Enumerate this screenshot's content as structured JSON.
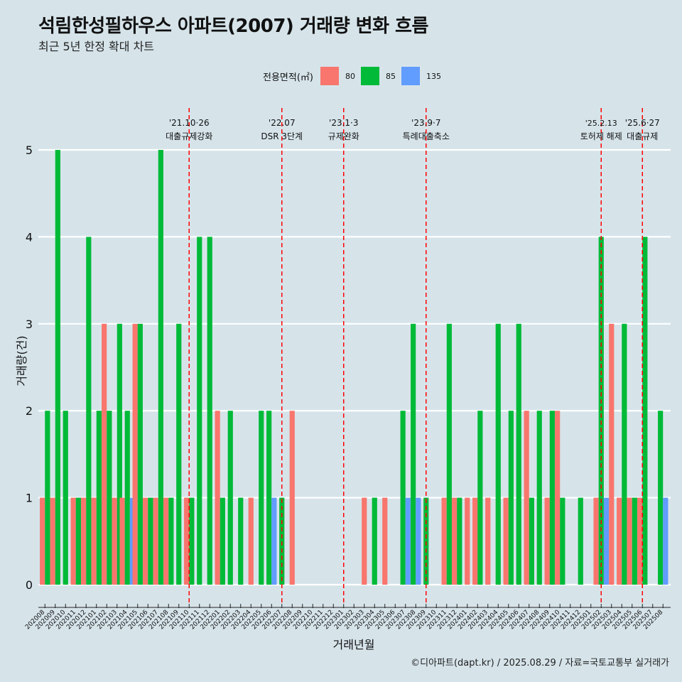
{
  "title": "석림한성필하우스 아파트(2007) 거래량 변화 흐름",
  "subtitle": "최근 5년 한정 확대 차트",
  "caption": "©디아파트(dapt.kr) / 2025.08.29 / 자료=국토교통부 실거래가",
  "legend": {
    "title": "전용면적(㎡)",
    "items": [
      {
        "label": "80",
        "color": "#f8766d"
      },
      {
        "label": "85",
        "color": "#00ba38"
      },
      {
        "label": "135",
        "color": "#619cff"
      }
    ]
  },
  "chart_data": {
    "type": "bar",
    "xlabel": "거래년월",
    "ylabel": "거래량(건)",
    "ylim": [
      0,
      5
    ],
    "yticks": [
      0,
      1,
      2,
      3,
      4,
      5
    ],
    "grid": true,
    "legend_position": "top",
    "categories": [
      "202008",
      "202009",
      "202010",
      "202011",
      "202012",
      "202101",
      "202102",
      "202103",
      "202104",
      "202105",
      "202106",
      "202107",
      "202108",
      "202109",
      "202110",
      "202111",
      "202112",
      "202201",
      "202202",
      "202203",
      "202204",
      "202205",
      "202206",
      "202207",
      "202208",
      "202209",
      "202210",
      "202211",
      "202212",
      "202301",
      "202302",
      "202303",
      "202304",
      "202305",
      "202306",
      "202307",
      "202308",
      "202309",
      "202310",
      "202311",
      "202312",
      "202401",
      "202402",
      "202403",
      "202404",
      "202405",
      "202406",
      "202407",
      "202408",
      "202409",
      "202410",
      "202411",
      "202412",
      "202501",
      "202502",
      "202503",
      "202504",
      "202505",
      "202506",
      "202507",
      "202508"
    ],
    "series": [
      {
        "name": "80",
        "color": "#f8766d",
        "values": [
          1,
          1,
          0,
          1,
          1,
          1,
          3,
          1,
          1,
          3,
          1,
          1,
          1,
          0,
          1,
          0,
          0,
          2,
          0,
          0,
          1,
          0,
          0,
          0,
          2,
          0,
          0,
          0,
          0,
          0,
          0,
          1,
          0,
          1,
          0,
          0,
          0,
          0,
          0,
          1,
          1,
          1,
          1,
          1,
          0,
          1,
          0,
          2,
          0,
          1,
          2,
          0,
          0,
          0,
          1,
          3,
          1,
          1,
          1,
          0,
          0
        ]
      },
      {
        "name": "85",
        "color": "#00ba38",
        "values": [
          2,
          5,
          2,
          1,
          4,
          2,
          2,
          3,
          2,
          3,
          1,
          5,
          1,
          3,
          1,
          4,
          4,
          1,
          2,
          1,
          0,
          2,
          2,
          1,
          0,
          0,
          0,
          0,
          0,
          0,
          0,
          0,
          1,
          0,
          0,
          2,
          3,
          1,
          0,
          3,
          1,
          0,
          2,
          0,
          3,
          2,
          3,
          1,
          2,
          2,
          1,
          0,
          1,
          0,
          4,
          0,
          3,
          1,
          4,
          0,
          2
        ]
      },
      {
        "name": "135",
        "color": "#619cff",
        "values": [
          0,
          0,
          0,
          0,
          0,
          0,
          0,
          0,
          1,
          0,
          0,
          0,
          0,
          0,
          0,
          0,
          0,
          0,
          0,
          0,
          0,
          0,
          1,
          0,
          0,
          0,
          0,
          0,
          0,
          0,
          0,
          0,
          0,
          0,
          0,
          1,
          1,
          0,
          0,
          0,
          0,
          0,
          0,
          0,
          0,
          0,
          0,
          0,
          0,
          0,
          0,
          0,
          0,
          0,
          1,
          0,
          0,
          0,
          0,
          0,
          1
        ]
      }
    ],
    "annotations": [
      {
        "date": "'21.10·26",
        "label": "대출규제강화",
        "category": "202110"
      },
      {
        "date": "'22.07",
        "label": "DSR 3단계",
        "category": "202207"
      },
      {
        "date": "'23.1·3",
        "label": "규제완화",
        "category": "202301"
      },
      {
        "date": "'23.9·7",
        "label": "특례대출축소",
        "category": "202309"
      },
      {
        "date": "'25.2.13",
        "label": "토허제 해제",
        "category": "202502"
      },
      {
        "date": "'25.6·27",
        "label": "대출규제",
        "category": "202506"
      }
    ]
  }
}
